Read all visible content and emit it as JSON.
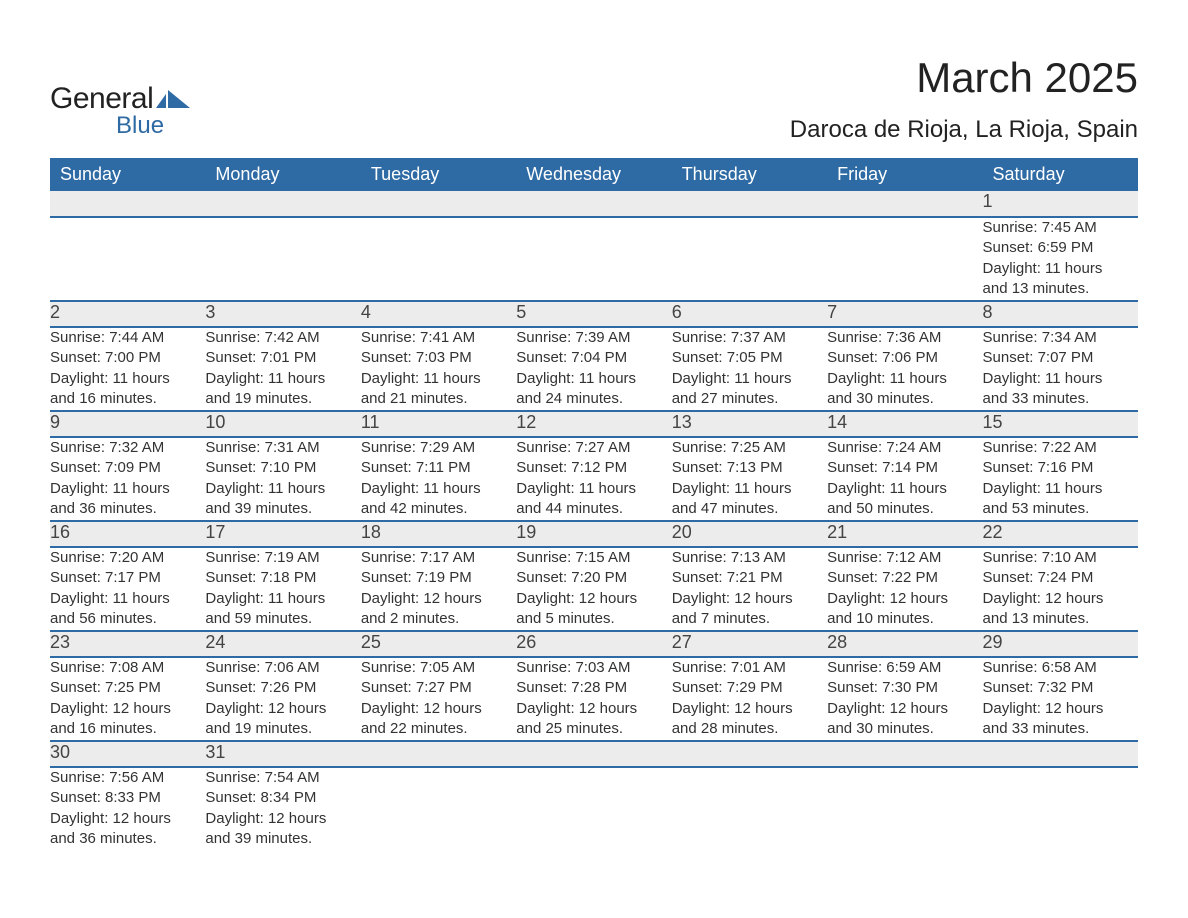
{
  "brand": {
    "name_general": "General",
    "name_blue": "Blue",
    "logo_primary_color": "#2e6aa3",
    "logo_text_color": "#222222"
  },
  "title": {
    "month": "March 2025",
    "location": "Daroca de Rioja, La Rioja, Spain"
  },
  "style": {
    "header_bg": "#2e6aa3",
    "header_text": "#ffffff",
    "daynum_bg": "#ececec",
    "border_color": "#2e6aa3",
    "body_text": "#333333",
    "page_bg": "#ffffff",
    "font_family": "Arial, Helvetica, sans-serif",
    "month_title_fontsize_pt": 32,
    "location_fontsize_pt": 18,
    "weekday_fontsize_pt": 14,
    "daynum_fontsize_pt": 14,
    "detail_fontsize_pt": 11
  },
  "weekdays": [
    "Sunday",
    "Monday",
    "Tuesday",
    "Wednesday",
    "Thursday",
    "Friday",
    "Saturday"
  ],
  "field_labels": {
    "sunrise": "Sunrise",
    "sunset": "Sunset",
    "daylight": "Daylight"
  },
  "weeks": [
    [
      null,
      null,
      null,
      null,
      null,
      null,
      {
        "day": "1",
        "sunrise": "7:45 AM",
        "sunset": "6:59 PM",
        "daylight_h": "11",
        "daylight_m": "13"
      }
    ],
    [
      {
        "day": "2",
        "sunrise": "7:44 AM",
        "sunset": "7:00 PM",
        "daylight_h": "11",
        "daylight_m": "16"
      },
      {
        "day": "3",
        "sunrise": "7:42 AM",
        "sunset": "7:01 PM",
        "daylight_h": "11",
        "daylight_m": "19"
      },
      {
        "day": "4",
        "sunrise": "7:41 AM",
        "sunset": "7:03 PM",
        "daylight_h": "11",
        "daylight_m": "21"
      },
      {
        "day": "5",
        "sunrise": "7:39 AM",
        "sunset": "7:04 PM",
        "daylight_h": "11",
        "daylight_m": "24"
      },
      {
        "day": "6",
        "sunrise": "7:37 AM",
        "sunset": "7:05 PM",
        "daylight_h": "11",
        "daylight_m": "27"
      },
      {
        "day": "7",
        "sunrise": "7:36 AM",
        "sunset": "7:06 PM",
        "daylight_h": "11",
        "daylight_m": "30"
      },
      {
        "day": "8",
        "sunrise": "7:34 AM",
        "sunset": "7:07 PM",
        "daylight_h": "11",
        "daylight_m": "33"
      }
    ],
    [
      {
        "day": "9",
        "sunrise": "7:32 AM",
        "sunset": "7:09 PM",
        "daylight_h": "11",
        "daylight_m": "36"
      },
      {
        "day": "10",
        "sunrise": "7:31 AM",
        "sunset": "7:10 PM",
        "daylight_h": "11",
        "daylight_m": "39"
      },
      {
        "day": "11",
        "sunrise": "7:29 AM",
        "sunset": "7:11 PM",
        "daylight_h": "11",
        "daylight_m": "42"
      },
      {
        "day": "12",
        "sunrise": "7:27 AM",
        "sunset": "7:12 PM",
        "daylight_h": "11",
        "daylight_m": "44"
      },
      {
        "day": "13",
        "sunrise": "7:25 AM",
        "sunset": "7:13 PM",
        "daylight_h": "11",
        "daylight_m": "47"
      },
      {
        "day": "14",
        "sunrise": "7:24 AM",
        "sunset": "7:14 PM",
        "daylight_h": "11",
        "daylight_m": "50"
      },
      {
        "day": "15",
        "sunrise": "7:22 AM",
        "sunset": "7:16 PM",
        "daylight_h": "11",
        "daylight_m": "53"
      }
    ],
    [
      {
        "day": "16",
        "sunrise": "7:20 AM",
        "sunset": "7:17 PM",
        "daylight_h": "11",
        "daylight_m": "56"
      },
      {
        "day": "17",
        "sunrise": "7:19 AM",
        "sunset": "7:18 PM",
        "daylight_h": "11",
        "daylight_m": "59"
      },
      {
        "day": "18",
        "sunrise": "7:17 AM",
        "sunset": "7:19 PM",
        "daylight_h": "12",
        "daylight_m": "2"
      },
      {
        "day": "19",
        "sunrise": "7:15 AM",
        "sunset": "7:20 PM",
        "daylight_h": "12",
        "daylight_m": "5"
      },
      {
        "day": "20",
        "sunrise": "7:13 AM",
        "sunset": "7:21 PM",
        "daylight_h": "12",
        "daylight_m": "7"
      },
      {
        "day": "21",
        "sunrise": "7:12 AM",
        "sunset": "7:22 PM",
        "daylight_h": "12",
        "daylight_m": "10"
      },
      {
        "day": "22",
        "sunrise": "7:10 AM",
        "sunset": "7:24 PM",
        "daylight_h": "12",
        "daylight_m": "13"
      }
    ],
    [
      {
        "day": "23",
        "sunrise": "7:08 AM",
        "sunset": "7:25 PM",
        "daylight_h": "12",
        "daylight_m": "16"
      },
      {
        "day": "24",
        "sunrise": "7:06 AM",
        "sunset": "7:26 PM",
        "daylight_h": "12",
        "daylight_m": "19"
      },
      {
        "day": "25",
        "sunrise": "7:05 AM",
        "sunset": "7:27 PM",
        "daylight_h": "12",
        "daylight_m": "22"
      },
      {
        "day": "26",
        "sunrise": "7:03 AM",
        "sunset": "7:28 PM",
        "daylight_h": "12",
        "daylight_m": "25"
      },
      {
        "day": "27",
        "sunrise": "7:01 AM",
        "sunset": "7:29 PM",
        "daylight_h": "12",
        "daylight_m": "28"
      },
      {
        "day": "28",
        "sunrise": "6:59 AM",
        "sunset": "7:30 PM",
        "daylight_h": "12",
        "daylight_m": "30"
      },
      {
        "day": "29",
        "sunrise": "6:58 AM",
        "sunset": "7:32 PM",
        "daylight_h": "12",
        "daylight_m": "33"
      }
    ],
    [
      {
        "day": "30",
        "sunrise": "7:56 AM",
        "sunset": "8:33 PM",
        "daylight_h": "12",
        "daylight_m": "36"
      },
      {
        "day": "31",
        "sunrise": "7:54 AM",
        "sunset": "8:34 PM",
        "daylight_h": "12",
        "daylight_m": "39"
      },
      null,
      null,
      null,
      null,
      null
    ]
  ]
}
